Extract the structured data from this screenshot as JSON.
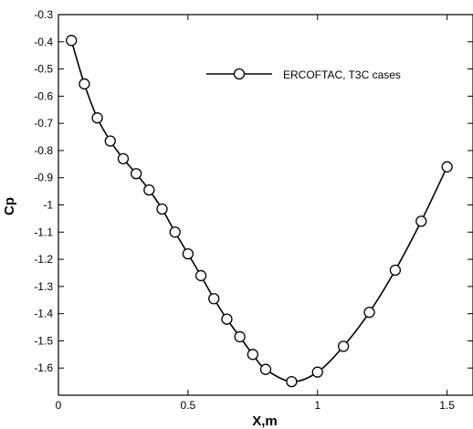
{
  "chart_data": {
    "type": "line",
    "title": "",
    "xlabel": "X,m",
    "ylabel": "Cp",
    "xlim": [
      0,
      1.6
    ],
    "ylim": [
      -1.7,
      -0.3
    ],
    "x_ticks": [
      0,
      0.5,
      1,
      1.5
    ],
    "x_tick_labels": [
      "0",
      "0.5",
      "1",
      "1.5"
    ],
    "y_ticks": [
      -0.3,
      -0.4,
      -0.5,
      -0.6,
      -0.7,
      -0.8,
      -0.9,
      -1.0,
      -1.1,
      -1.2,
      -1.3,
      -1.4,
      -1.5,
      -1.6
    ],
    "y_tick_labels": [
      "-0.3",
      "-0.4",
      "-0.5",
      "-0.6",
      "-0.7",
      "-0.8",
      "-0.9",
      "-1",
      "-1.1",
      "-1.2",
      "-1.3",
      "-1.4",
      "-1.5",
      "-1.6"
    ],
    "grid": false,
    "legend_position": "top-right",
    "series": [
      {
        "name": "ERCOFTAC, T3C cases",
        "marker": "open-circle",
        "color": "#000000",
        "x": [
          0.05,
          0.1,
          0.15,
          0.2,
          0.25,
          0.3,
          0.35,
          0.4,
          0.45,
          0.5,
          0.55,
          0.6,
          0.65,
          0.7,
          0.75,
          0.8,
          0.9,
          1.0,
          1.1,
          1.2,
          1.3,
          1.4,
          1.5
        ],
        "y": [
          -0.395,
          -0.555,
          -0.68,
          -0.765,
          -0.83,
          -0.885,
          -0.945,
          -1.015,
          -1.1,
          -1.18,
          -1.26,
          -1.345,
          -1.42,
          -1.485,
          -1.55,
          -1.605,
          -1.65,
          -1.615,
          -1.52,
          -1.395,
          -1.24,
          -1.06,
          -0.86
        ]
      }
    ]
  }
}
